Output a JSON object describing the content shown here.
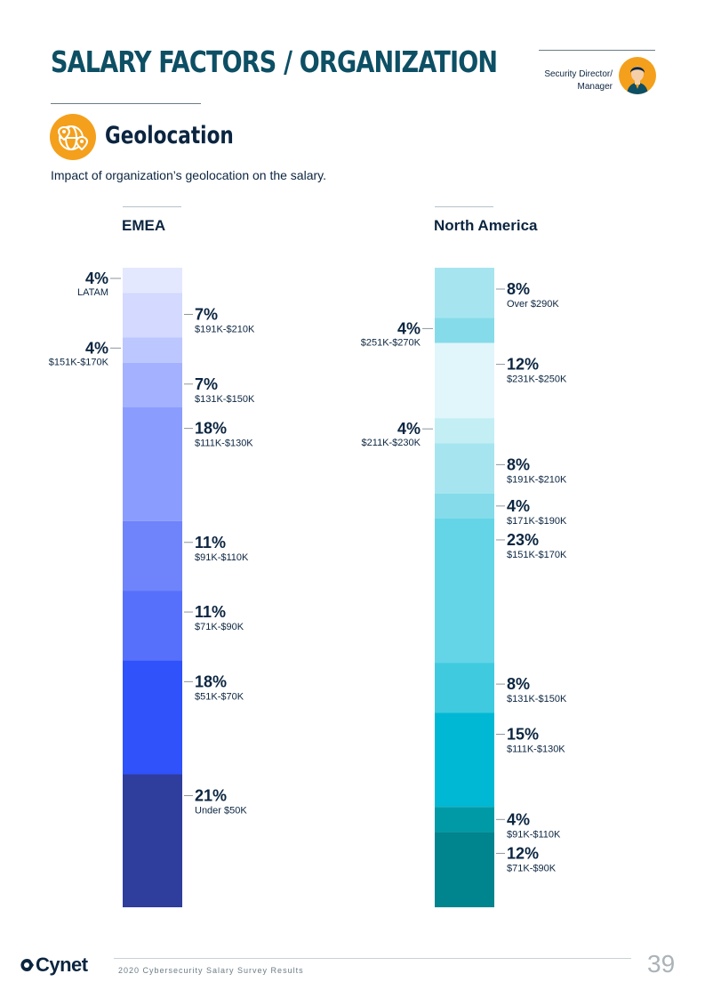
{
  "page": {
    "title": "SALARY FACTORS / ORGANIZATION",
    "role": "Security Director/ Manager",
    "section_title": "Geolocation",
    "subtitle": "Impact of organization’s geolocation on the salary.",
    "footer_text": "2020 Cybersecurity Salary Survey Results",
    "page_number": "39",
    "logo": "Cynet"
  },
  "icons": {
    "avatar": "security-director-avatar-icon",
    "geo": "globe-location-pin-icon",
    "logo": "cynet-logo-icon"
  },
  "chart_data": [
    {
      "type": "stacked-bar",
      "title": "EMEA",
      "total": 100,
      "segments": [
        {
          "value": 4,
          "pct": "4%",
          "label": "LATAM",
          "side": "left",
          "color": "#e4e8ff"
        },
        {
          "value": 7,
          "pct": "7%",
          "label": "$191K-$210K",
          "side": "right",
          "color": "#d3d9ff"
        },
        {
          "value": 4,
          "pct": "4%",
          "label": "$151K-$170K",
          "side": "left",
          "color": "#bcc6ff"
        },
        {
          "value": 7,
          "pct": "7%",
          "label": "$131K-$150K",
          "side": "right",
          "color": "#a3b1ff"
        },
        {
          "value": 18,
          "pct": "18%",
          "label": "$111K-$130K",
          "side": "right",
          "color": "#8b9cff"
        },
        {
          "value": 11,
          "pct": "11%",
          "label": "$91K-$110K",
          "side": "right",
          "color": "#6f84fb"
        },
        {
          "value": 11,
          "pct": "11%",
          "label": "$71K-$90K",
          "side": "right",
          "color": "#5770fb"
        },
        {
          "value": 18,
          "pct": "18%",
          "label": "$51K-$70K",
          "side": "right",
          "color": "#2f52fb"
        },
        {
          "value": 21,
          "pct": "21%",
          "label": "Under $50K",
          "side": "right",
          "color": "#2f3d9c"
        }
      ]
    },
    {
      "type": "stacked-bar",
      "title": "North America",
      "total": 100,
      "segments": [
        {
          "value": 8,
          "pct": "8%",
          "label": "Over $290K",
          "side": "right",
          "color": "#a6e5ef"
        },
        {
          "value": 4,
          "pct": "4%",
          "label": "$251K-$270K",
          "side": "left",
          "color": "#85dbe9"
        },
        {
          "value": 12,
          "pct": "12%",
          "label": "$231K-$250K",
          "side": "right",
          "color": "#e1f6fa"
        },
        {
          "value": 4,
          "pct": "4%",
          "label": "$211K-$230K",
          "side": "left",
          "color": "#c2eef4"
        },
        {
          "value": 8,
          "pct": "8%",
          "label": "$191K-$210K",
          "side": "right",
          "color": "#a6e5ef"
        },
        {
          "value": 4,
          "pct": "4%",
          "label": "$171K-$190K",
          "side": "right",
          "color": "#85dbe9"
        },
        {
          "value": 23,
          "pct": "23%",
          "label": "$151K-$170K",
          "side": "right",
          "color": "#63d5e6"
        },
        {
          "value": 8,
          "pct": "8%",
          "label": "$131K-$150K",
          "side": "right",
          "color": "#3fcadf"
        },
        {
          "value": 15,
          "pct": "15%",
          "label": "$111K-$130K",
          "side": "right",
          "color": "#00b8d4"
        },
        {
          "value": 4,
          "pct": "4%",
          "label": "$91K-$110K",
          "side": "right",
          "color": "#009aa6"
        },
        {
          "value": 12,
          "pct": "12%",
          "label": "$71K-$90K",
          "side": "right",
          "color": "#00848e"
        }
      ]
    }
  ]
}
